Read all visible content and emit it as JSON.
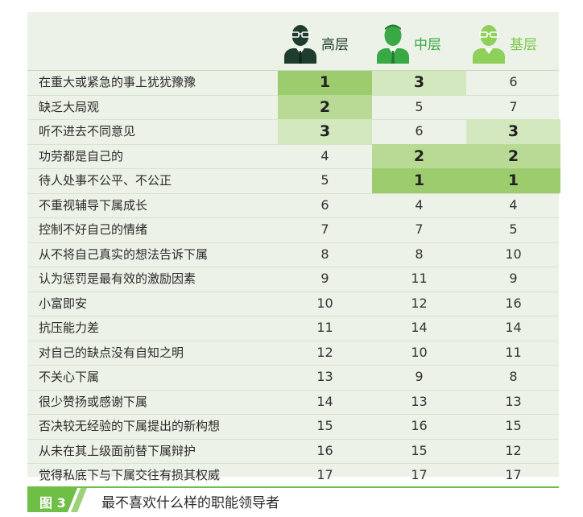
{
  "figure": {
    "tag": "图 3",
    "caption": "最不喜欢什么样的职能领导者"
  },
  "columns": [
    {
      "key": "high",
      "label": "高层",
      "label_color": "#1f3d2e",
      "icon": "senior-manager-icon"
    },
    {
      "key": "mid",
      "label": "中层",
      "label_color": "#3aa845",
      "icon": "middle-manager-icon"
    },
    {
      "key": "base",
      "label": "基层",
      "label_color": "#7cc74c",
      "icon": "junior-staff-icon"
    }
  ],
  "colors": {
    "rank1": "#9dcc6e",
    "rank2": "#b8da94",
    "rank3": "#d4e8c0",
    "panel": "#ecf2e7",
    "accent": "#6fbe45"
  },
  "chart_data": {
    "type": "table",
    "columns": [
      "高层",
      "中层",
      "基层"
    ],
    "rows": [
      {
        "label": "在重大或紧急的事上犹犹豫豫",
        "ranks": [
          1,
          3,
          6
        ]
      },
      {
        "label": "缺乏大局观",
        "ranks": [
          2,
          5,
          7
        ]
      },
      {
        "label": "听不进去不同意见",
        "ranks": [
          3,
          6,
          3
        ]
      },
      {
        "label": "功劳都是自己的",
        "ranks": [
          4,
          2,
          2
        ]
      },
      {
        "label": "待人处事不公平、不公正",
        "ranks": [
          5,
          1,
          1
        ]
      },
      {
        "label": "不重视辅导下属成长",
        "ranks": [
          6,
          4,
          4
        ]
      },
      {
        "label": "控制不好自己的情绪",
        "ranks": [
          7,
          7,
          5
        ]
      },
      {
        "label": "从不将自己真实的想法告诉下属",
        "ranks": [
          8,
          8,
          10
        ]
      },
      {
        "label": "认为惩罚是最有效的激励因素",
        "ranks": [
          9,
          11,
          9
        ]
      },
      {
        "label": "小富即安",
        "ranks": [
          10,
          12,
          16
        ]
      },
      {
        "label": "抗压能力差",
        "ranks": [
          11,
          14,
          14
        ]
      },
      {
        "label": "对自己的缺点没有自知之明",
        "ranks": [
          12,
          10,
          11
        ]
      },
      {
        "label": "不关心下属",
        "ranks": [
          13,
          9,
          8
        ]
      },
      {
        "label": "很少赞扬或感谢下属",
        "ranks": [
          14,
          13,
          13
        ]
      },
      {
        "label": "否决较无经验的下属提出的新构想",
        "ranks": [
          15,
          16,
          15
        ]
      },
      {
        "label": "从未在其上级面前替下属辩护",
        "ranks": [
          16,
          15,
          12
        ]
      },
      {
        "label": "觉得私底下与下属交往有损其权威",
        "ranks": [
          17,
          17,
          17
        ]
      }
    ]
  }
}
